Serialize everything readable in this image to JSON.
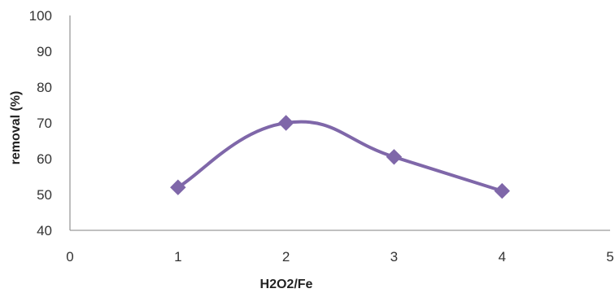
{
  "chart_data": {
    "type": "line",
    "smooth": true,
    "xlabel": "H2O2/Fe",
    "ylabel": "removal (%)",
    "xlim": [
      0,
      5
    ],
    "ylim": [
      40,
      100
    ],
    "x_ticks": [
      "0",
      "1",
      "2",
      "3",
      "4",
      "5"
    ],
    "y_ticks": [
      "40",
      "50",
      "60",
      "70",
      "80",
      "90",
      "100"
    ],
    "grid": false,
    "legend": "none",
    "series": [
      {
        "marker": "diamond",
        "color": "#7F67A9",
        "x": [
          1,
          2,
          3,
          4
        ],
        "y": [
          52,
          70,
          60.5,
          51
        ]
      }
    ]
  }
}
